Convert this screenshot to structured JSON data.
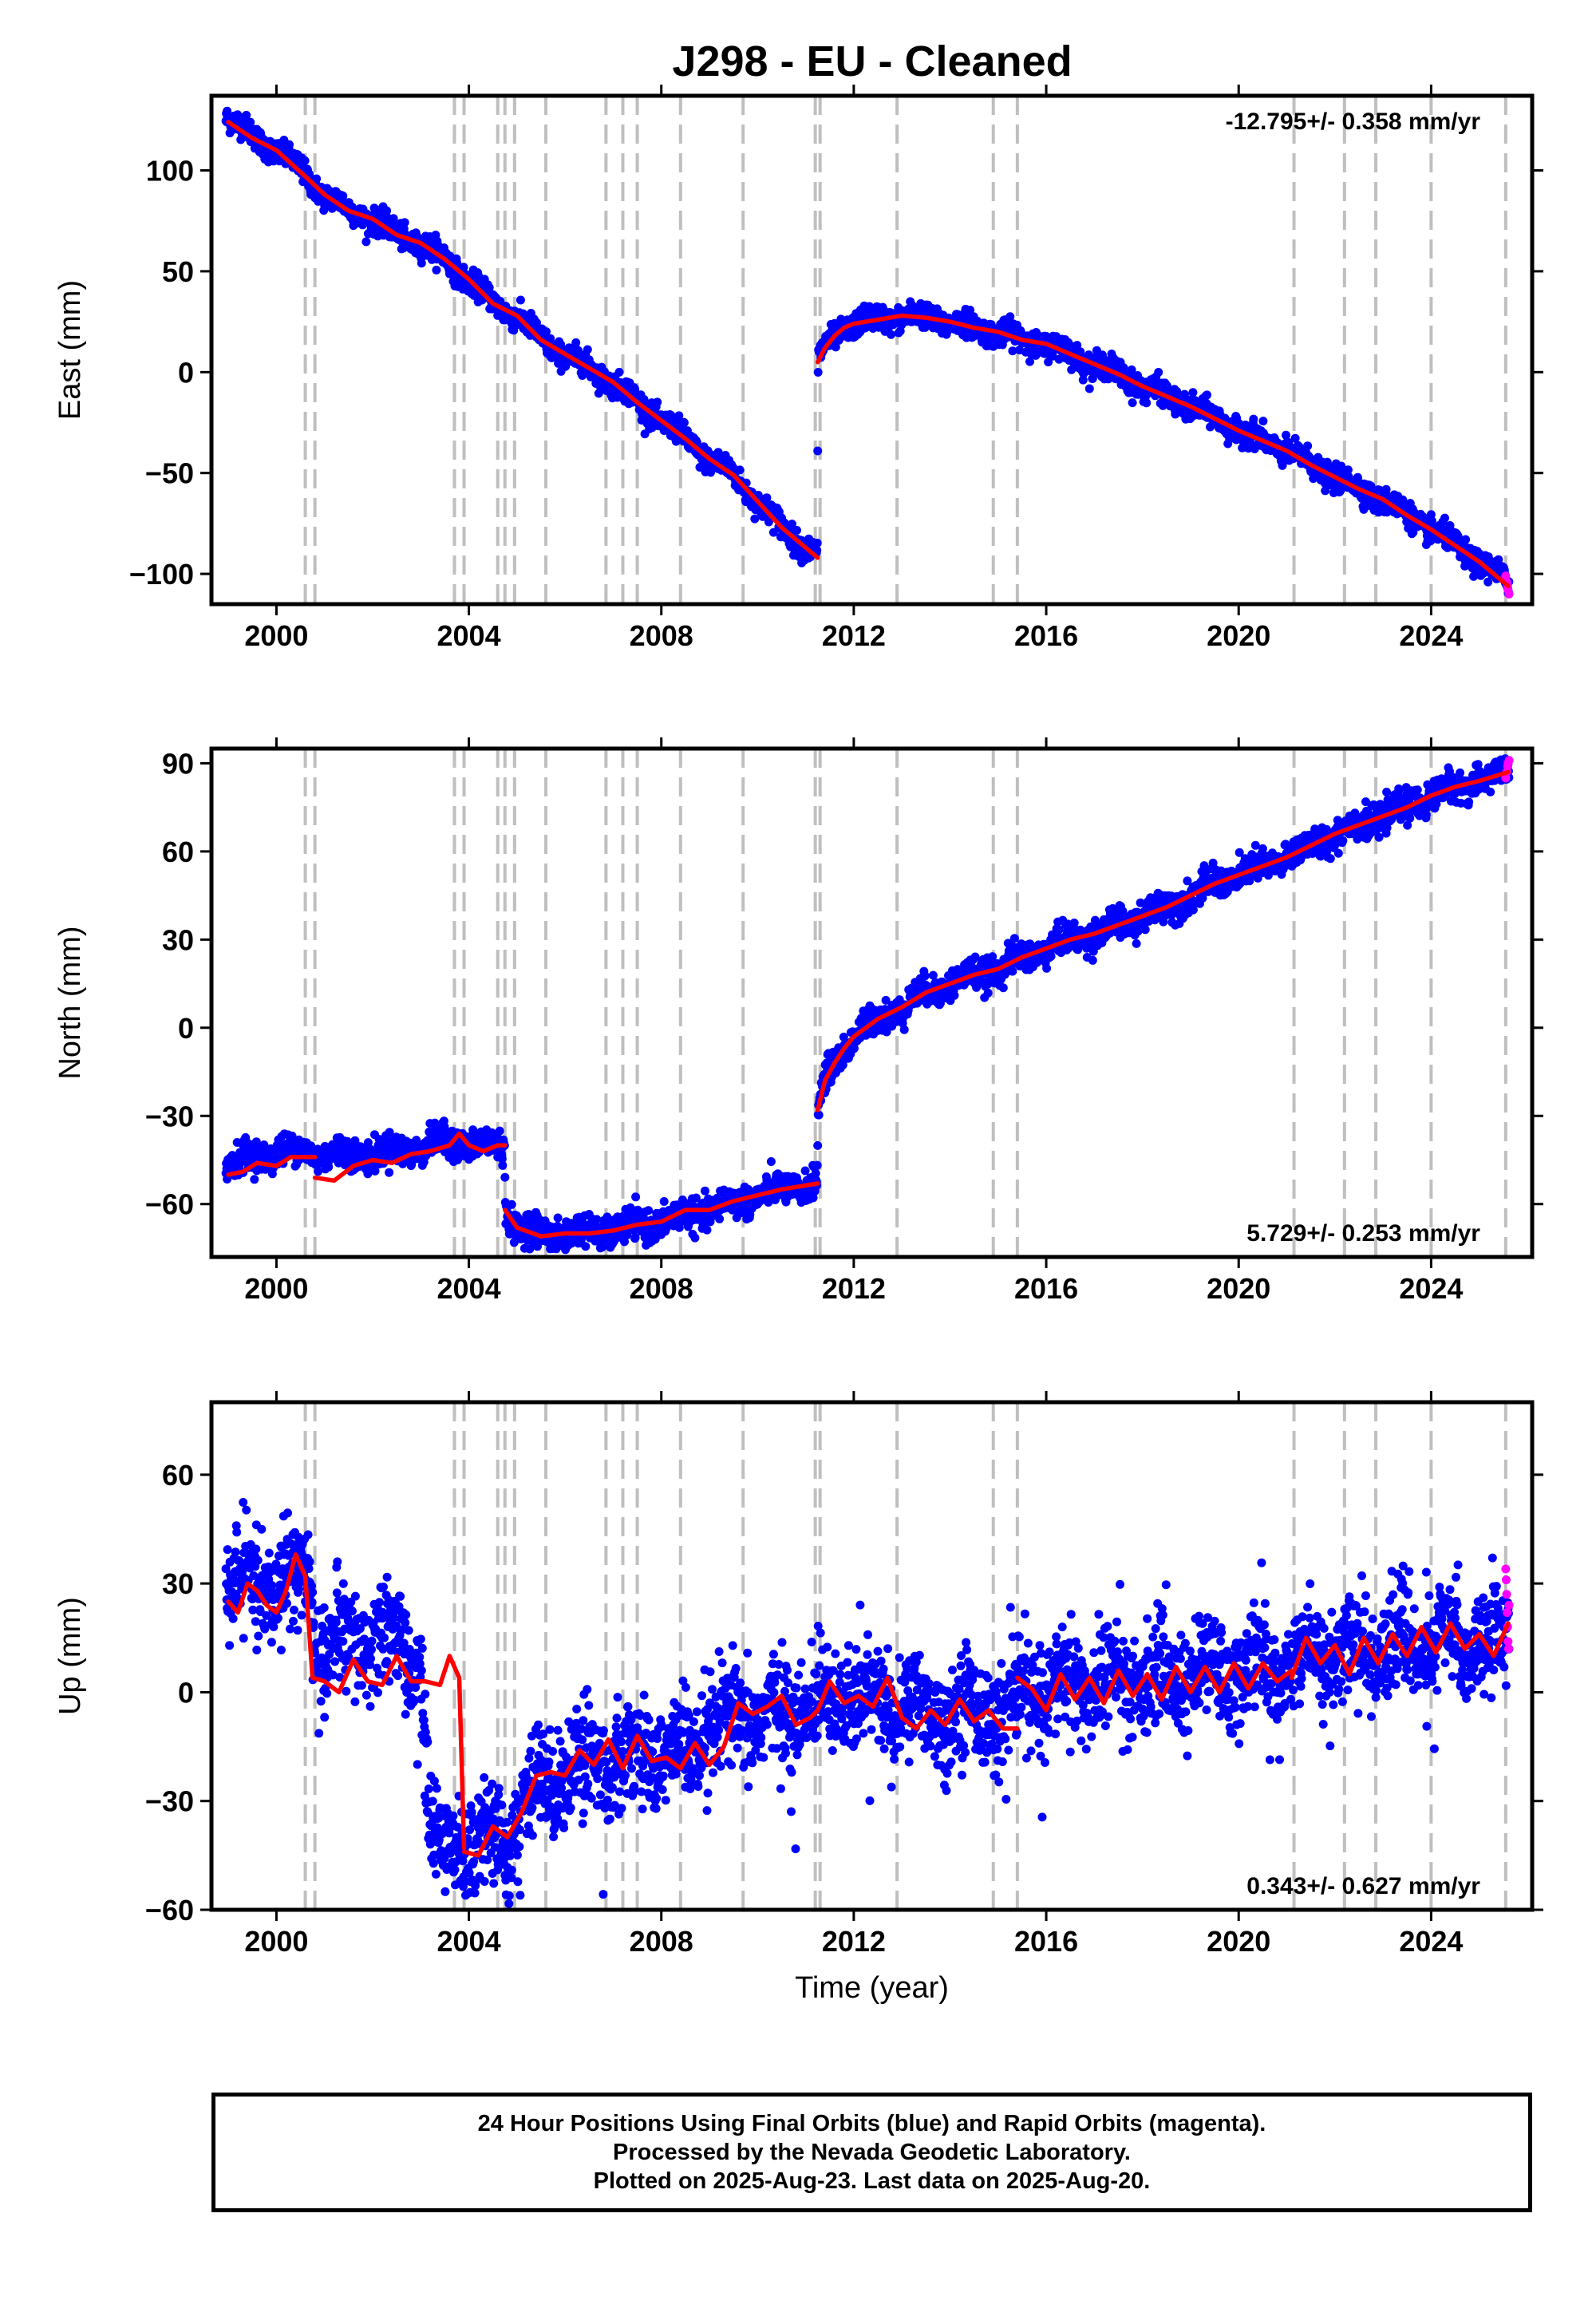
{
  "title": "J298  - EU - Cleaned",
  "colors": {
    "final_orbits": "#0000ff",
    "rapid_orbits": "#ff00ff",
    "model_fit": "#ff0000",
    "event_lines": "#bfbfbf",
    "frame": "#000000"
  },
  "footer": {
    "line1": "24 Hour Positions Using Final Orbits (blue) and Rapid Orbits (magenta).",
    "line2": "Processed by the Nevada Geodetic Laboratory.",
    "line3": "Plotted on 2025-Aug-23. Last data on 2025-Aug-20."
  },
  "chart_data": [
    {
      "type": "scatter",
      "panel": "east",
      "ylabel": "East (mm)",
      "xlabel": "",
      "xlim": [
        1998.65,
        2026.1
      ],
      "ylim": [
        -115,
        137
      ],
      "x_ticks": [
        2000,
        2004,
        2008,
        2012,
        2016,
        2020,
        2024
      ],
      "y_ticks": [
        -100,
        -50,
        0,
        50,
        100
      ],
      "y_tick_labels": [
        "−100",
        "−50",
        "0",
        "50",
        "100"
      ],
      "rate_label": "-12.795+/- 0.358 mm/yr",
      "rate_position": "top-right",
      "event_lines": [
        2000.6,
        2000.8,
        2003.7,
        2003.9,
        2004.6,
        2004.75,
        2004.95,
        2005.6,
        2006.85,
        2007.2,
        2007.5,
        2008.4,
        2009.7,
        2011.2,
        2011.3,
        2012.9,
        2014.9,
        2015.4,
        2021.15,
        2022.2,
        2022.85,
        2024.0,
        2025.55
      ],
      "fit_segments": [
        {
          "x": [
            1999.0,
            1999.5,
            2000.0,
            2000.6,
            2001.0,
            2001.5,
            2002.0,
            2002.5,
            2003.0,
            2003.5,
            2004.0,
            2004.5,
            2005.0,
            2005.5,
            2006.0,
            2006.5,
            2007.0,
            2007.5,
            2008.0,
            2008.5,
            2009.0,
            2009.5,
            2010.0,
            2010.5,
            2011.25
          ],
          "y": [
            124,
            116,
            110,
            97,
            88,
            80,
            76,
            68,
            64,
            56,
            46,
            34,
            28,
            16,
            9,
            2,
            -5,
            -15,
            -24,
            -33,
            -43,
            -51,
            -64,
            -77,
            -92
          ]
        },
        {
          "x": [
            2011.25,
            2011.4,
            2011.6,
            2011.8,
            2012.0,
            2012.5,
            2013.0,
            2013.5,
            2014.0,
            2014.5,
            2015.0,
            2015.5,
            2016.0,
            2016.5,
            2017.0,
            2017.5,
            2018.0,
            2018.5,
            2019.0,
            2019.5,
            2020.0,
            2020.5,
            2021.0,
            2021.5,
            2022.0,
            2022.5,
            2023.0,
            2023.5,
            2024.0,
            2024.5,
            2025.0,
            2025.6
          ],
          "y": [
            5,
            12,
            18,
            22,
            24,
            26,
            28,
            27,
            25,
            22,
            20,
            16,
            14,
            9,
            4,
            -1,
            -7,
            -12,
            -17,
            -23,
            -29,
            -34,
            -39,
            -46,
            -52,
            -58,
            -63,
            -71,
            -78,
            -86,
            -94,
            -106
          ]
        }
      ],
      "trend_knots": {
        "x": [
          1998.9,
          1999.5,
          2000.0,
          2000.6,
          2001.0,
          2001.5,
          2002.0,
          2002.5,
          2003.0,
          2003.5,
          2004.0,
          2004.5,
          2005.0,
          2005.5,
          2006.0,
          2006.5,
          2007.0,
          2007.5,
          2008.0,
          2008.5,
          2009.0,
          2009.5,
          2010.0,
          2010.5,
          2011.24,
          2011.26,
          2011.4,
          2011.6,
          2011.8,
          2012.0,
          2012.5,
          2013.0,
          2013.5,
          2014.0,
          2014.5,
          2015.0,
          2015.5,
          2016.0,
          2016.5,
          2017.0,
          2017.5,
          2018.0,
          2018.5,
          2019.0,
          2019.5,
          2020.0,
          2020.5,
          2021.0,
          2021.5,
          2022.0,
          2022.5,
          2023.0,
          2023.5,
          2024.0,
          2024.5,
          2025.0,
          2025.62
        ],
        "y": [
          128,
          117,
          110,
          98,
          88,
          80,
          76,
          68,
          64,
          56,
          46,
          34,
          28,
          16,
          9,
          2,
          -5,
          -15,
          -24,
          -33,
          -43,
          -51,
          -64,
          -77,
          -91,
          6,
          12,
          18,
          22,
          24,
          26,
          28,
          27,
          25,
          22,
          20,
          16,
          14,
          9,
          4,
          -1,
          -7,
          -12,
          -17,
          -23,
          -29,
          -34,
          -39,
          -46,
          -52,
          -58,
          -63,
          -71,
          -78,
          -86,
          -94,
          -105
        ]
      },
      "scatter_noise_mm": 3,
      "seasonal_mm": 2,
      "scatter_range": [
        1998.95,
        2025.62
      ],
      "rapid_points": {
        "x": [
          2025.55,
          2025.57,
          2025.59,
          2025.6,
          2025.62
        ],
        "y": [
          -101,
          -104,
          -106,
          -108,
          -110
        ]
      }
    },
    {
      "type": "scatter",
      "panel": "north",
      "ylabel": "North (mm)",
      "xlabel": "",
      "xlim": [
        1998.65,
        2026.1
      ],
      "ylim": [
        -78,
        95
      ],
      "x_ticks": [
        2000,
        2004,
        2008,
        2012,
        2016,
        2020,
        2024
      ],
      "y_ticks": [
        -60,
        -30,
        0,
        30,
        60,
        90
      ],
      "y_tick_labels": [
        "−60",
        "−30",
        "0",
        "30",
        "60",
        "90"
      ],
      "rate_label": "5.729+/- 0.253 mm/yr",
      "rate_position": "bottom-right",
      "event_lines": [
        2000.6,
        2000.8,
        2003.7,
        2003.9,
        2004.6,
        2004.75,
        2004.95,
        2005.6,
        2006.85,
        2007.2,
        2007.5,
        2008.4,
        2009.7,
        2011.2,
        2011.3,
        2012.9,
        2014.9,
        2015.4,
        2021.15,
        2022.2,
        2022.85,
        2024.0,
        2025.55
      ],
      "fit_segments": [
        {
          "x": [
            1999.0,
            1999.3,
            1999.6,
            2000.0,
            2000.3,
            2000.6,
            2000.8
          ],
          "y": [
            -50,
            -49,
            -46,
            -47,
            -44,
            -44,
            -44
          ]
        },
        {
          "x": [
            2000.8,
            2001.2,
            2001.6,
            2002.0,
            2002.4,
            2002.8,
            2003.2,
            2003.6,
            2003.8,
            2004.0,
            2004.3,
            2004.6,
            2004.75
          ],
          "y": [
            -51,
            -52,
            -47,
            -45,
            -46,
            -43,
            -42,
            -40,
            -36,
            -40,
            -42,
            -40,
            -40
          ]
        },
        {
          "x": [
            2004.75,
            2005.0,
            2005.5,
            2006.0,
            2006.5,
            2007.0,
            2007.5,
            2008.0,
            2008.5,
            2009.0,
            2009.5,
            2010.0,
            2010.5,
            2011.25
          ],
          "y": [
            -62,
            -68,
            -71,
            -70,
            -70,
            -69,
            -67,
            -66,
            -62,
            -62,
            -59,
            -57,
            -55,
            -53
          ]
        },
        {
          "x": [
            2011.25,
            2011.4,
            2011.6,
            2011.8,
            2012.0,
            2012.5,
            2013.0,
            2013.5,
            2014.0,
            2014.5,
            2015.0,
            2015.5,
            2016.0,
            2016.5,
            2017.0,
            2017.5,
            2018.0,
            2018.5,
            2019.0,
            2019.5,
            2020.0,
            2020.5,
            2021.0,
            2021.5,
            2022.0,
            2022.5,
            2023.0,
            2023.5,
            2024.0,
            2024.5,
            2025.0,
            2025.6
          ],
          "y": [
            -28,
            -18,
            -12,
            -7,
            -3,
            3,
            7,
            12,
            15,
            18,
            20,
            24,
            27,
            30,
            32,
            35,
            38,
            41,
            45,
            49,
            52,
            55,
            58,
            62,
            66,
            69,
            72,
            75,
            79,
            82,
            84,
            87
          ]
        }
      ],
      "trend_knots": {
        "x": [
          1998.9,
          1999.5,
          2000.0,
          2000.6,
          2001.0,
          2002.0,
          2003.0,
          2003.7,
          2004.0,
          2004.6,
          2004.74,
          2004.76,
          2005.0,
          2005.5,
          2006.0,
          2007.0,
          2008.0,
          2009.0,
          2010.0,
          2010.5,
          2011.24,
          2011.26,
          2011.4,
          2011.6,
          2011.8,
          2012.0,
          2012.5,
          2013.0,
          2013.5,
          2014.0,
          2014.5,
          2015.0,
          2015.5,
          2016.0,
          2016.5,
          2017.0,
          2017.5,
          2018.0,
          2018.5,
          2019.0,
          2019.5,
          2020.0,
          2020.5,
          2021.0,
          2021.5,
          2022.0,
          2022.5,
          2023.0,
          2023.5,
          2024.0,
          2024.5,
          2025.0,
          2025.62
        ],
        "y": [
          -46,
          -44,
          -42,
          -42,
          -43,
          -43,
          -41,
          -38,
          -40,
          -40,
          -40,
          -62,
          -68,
          -70,
          -70,
          -69,
          -66,
          -62,
          -57,
          -55,
          -53,
          -28,
          -18,
          -12,
          -7,
          -3,
          3,
          7,
          12,
          15,
          18,
          20,
          24,
          27,
          30,
          32,
          35,
          38,
          41,
          45,
          49,
          52,
          55,
          58,
          62,
          66,
          69,
          72,
          75,
          79,
          82,
          84,
          87
        ]
      },
      "scatter_noise_mm": 2.5,
      "seasonal_mm": 1.5,
      "scatter_range": [
        1998.95,
        2025.62
      ],
      "rapid_points": {
        "x": [
          2025.55,
          2025.57,
          2025.59,
          2025.6,
          2025.62
        ],
        "y": [
          85,
          87,
          89,
          90,
          91
        ]
      }
    },
    {
      "type": "scatter",
      "panel": "up",
      "ylabel": "Up (mm)",
      "xlabel": "Time (year)",
      "xlim": [
        1998.65,
        2026.1
      ],
      "ylim": [
        -60,
        80
      ],
      "x_ticks": [
        2000,
        2004,
        2008,
        2012,
        2016,
        2020,
        2024
      ],
      "y_ticks": [
        -60,
        -30,
        0,
        30,
        60
      ],
      "y_tick_labels": [
        "−60",
        "−30",
        "0",
        "30",
        "60"
      ],
      "rate_label": "0.343+/- 0.627 mm/yr",
      "rate_position": "bottom-right",
      "event_lines": [
        2000.6,
        2000.8,
        2003.7,
        2003.9,
        2004.6,
        2004.75,
        2004.95,
        2005.6,
        2006.85,
        2007.2,
        2007.5,
        2008.4,
        2009.7,
        2011.2,
        2011.3,
        2012.9,
        2014.9,
        2015.4,
        2021.15,
        2022.2,
        2022.85,
        2024.0,
        2025.55
      ],
      "fit_segments": [
        {
          "x": [
            1999.0,
            1999.2,
            1999.4,
            1999.6,
            1999.8,
            2000.0,
            2000.2,
            2000.4,
            2000.6,
            2000.75
          ],
          "y": [
            25,
            22,
            30,
            28,
            24,
            22,
            28,
            38,
            32,
            4
          ]
        },
        {
          "x": [
            2000.75,
            2001.0,
            2001.3,
            2001.6,
            2001.9,
            2002.2,
            2002.5,
            2002.8,
            2003.1,
            2003.4,
            2003.6,
            2003.8,
            2003.9
          ],
          "y": [
            4,
            3,
            0,
            9,
            3,
            2,
            10,
            3,
            3,
            2,
            10,
            4,
            -43
          ]
        },
        {
          "x": [
            2003.9,
            2004.2,
            2004.5,
            2004.8,
            2005.1,
            2005.4,
            2005.7,
            2006.0,
            2006.3,
            2006.6,
            2006.9,
            2007.2,
            2007.5,
            2007.8,
            2008.1,
            2008.4,
            2008.7,
            2009.0,
            2009.3,
            2009.6,
            2009.9,
            2010.2,
            2010.5,
            2010.8,
            2011.1,
            2011.25
          ],
          "y": [
            -44,
            -45,
            -37,
            -40,
            -33,
            -23,
            -22,
            -23,
            -16,
            -20,
            -13,
            -21,
            -12,
            -19,
            -18,
            -21,
            -14,
            -20,
            -15,
            -3,
            -6,
            -4,
            -1,
            -9,
            -7,
            -5
          ]
        },
        {
          "x": [
            2011.25,
            2011.5,
            2011.8,
            2012.1,
            2012.4,
            2012.7,
            2013.0,
            2013.3,
            2013.6,
            2013.9,
            2014.2,
            2014.5,
            2014.8,
            2015.1,
            2015.4
          ],
          "y": [
            -5,
            3,
            -3,
            -1,
            -4,
            4,
            -7,
            -10,
            -5,
            -9,
            -2,
            -8,
            -5,
            -10,
            -10
          ]
        },
        {
          "x": [
            2015.4,
            2015.7,
            2016.0,
            2016.3,
            2016.6,
            2016.9,
            2017.2,
            2017.5,
            2017.8,
            2018.1,
            2018.4,
            2018.7,
            2019.0,
            2019.3,
            2019.6,
            2019.9,
            2020.2,
            2020.5,
            2020.8,
            2021.1
          ],
          "y": [
            4,
            1,
            -5,
            5,
            -2,
            4,
            -3,
            6,
            -1,
            5,
            -2,
            7,
            0,
            7,
            0,
            8,
            1,
            8,
            3,
            6
          ]
        },
        {
          "x": [
            2021.1,
            2021.4,
            2021.7,
            2022.0,
            2022.3,
            2022.6,
            2022.9,
            2023.2,
            2023.5,
            2023.8,
            2024.1,
            2024.4,
            2024.7,
            2025.0,
            2025.3,
            2025.6
          ],
          "y": [
            4,
            15,
            8,
            13,
            5,
            15,
            8,
            16,
            10,
            18,
            11,
            19,
            12,
            16,
            10,
            19
          ]
        }
      ],
      "trend_knots": {
        "x": [
          1998.9,
          2000.0,
          2000.74,
          2000.76,
          2001.5,
          2002.5,
          2003.0,
          2003.2,
          2003.89,
          2003.91,
          2004.5,
          2005.0,
          2005.5,
          2006.5,
          2007.5,
          2008.5,
          2009.5,
          2010.5,
          2011.24,
          2011.26,
          2012.5,
          2013.5,
          2014.5,
          2015.39,
          2015.41,
          2016.5,
          2017.5,
          2018.5,
          2019.5,
          2020.5,
          2021.14,
          2021.16,
          2022.0,
          2023.0,
          2024.0,
          2025.0,
          2025.62
        ],
        "y": [
          28,
          30,
          33,
          12,
          14,
          14,
          8,
          -43,
          -40,
          -43,
          -40,
          -38,
          -24,
          -19,
          -17,
          -17,
          -8,
          -6,
          -4,
          0,
          -3,
          -5,
          -5,
          -6,
          0,
          2,
          3,
          4,
          5,
          6,
          6,
          10,
          11,
          12,
          14,
          14,
          15
        ]
      },
      "scatter_noise_mm": 7,
      "seasonal_mm": 4,
      "scatter_range": [
        1998.95,
        2025.62
      ],
      "rapid_points": {
        "x": [
          2025.55,
          2025.56,
          2025.57,
          2025.58,
          2025.59,
          2025.6,
          2025.61,
          2025.62
        ],
        "y": [
          34,
          31,
          27,
          22,
          18,
          14,
          12,
          24
        ]
      }
    }
  ]
}
